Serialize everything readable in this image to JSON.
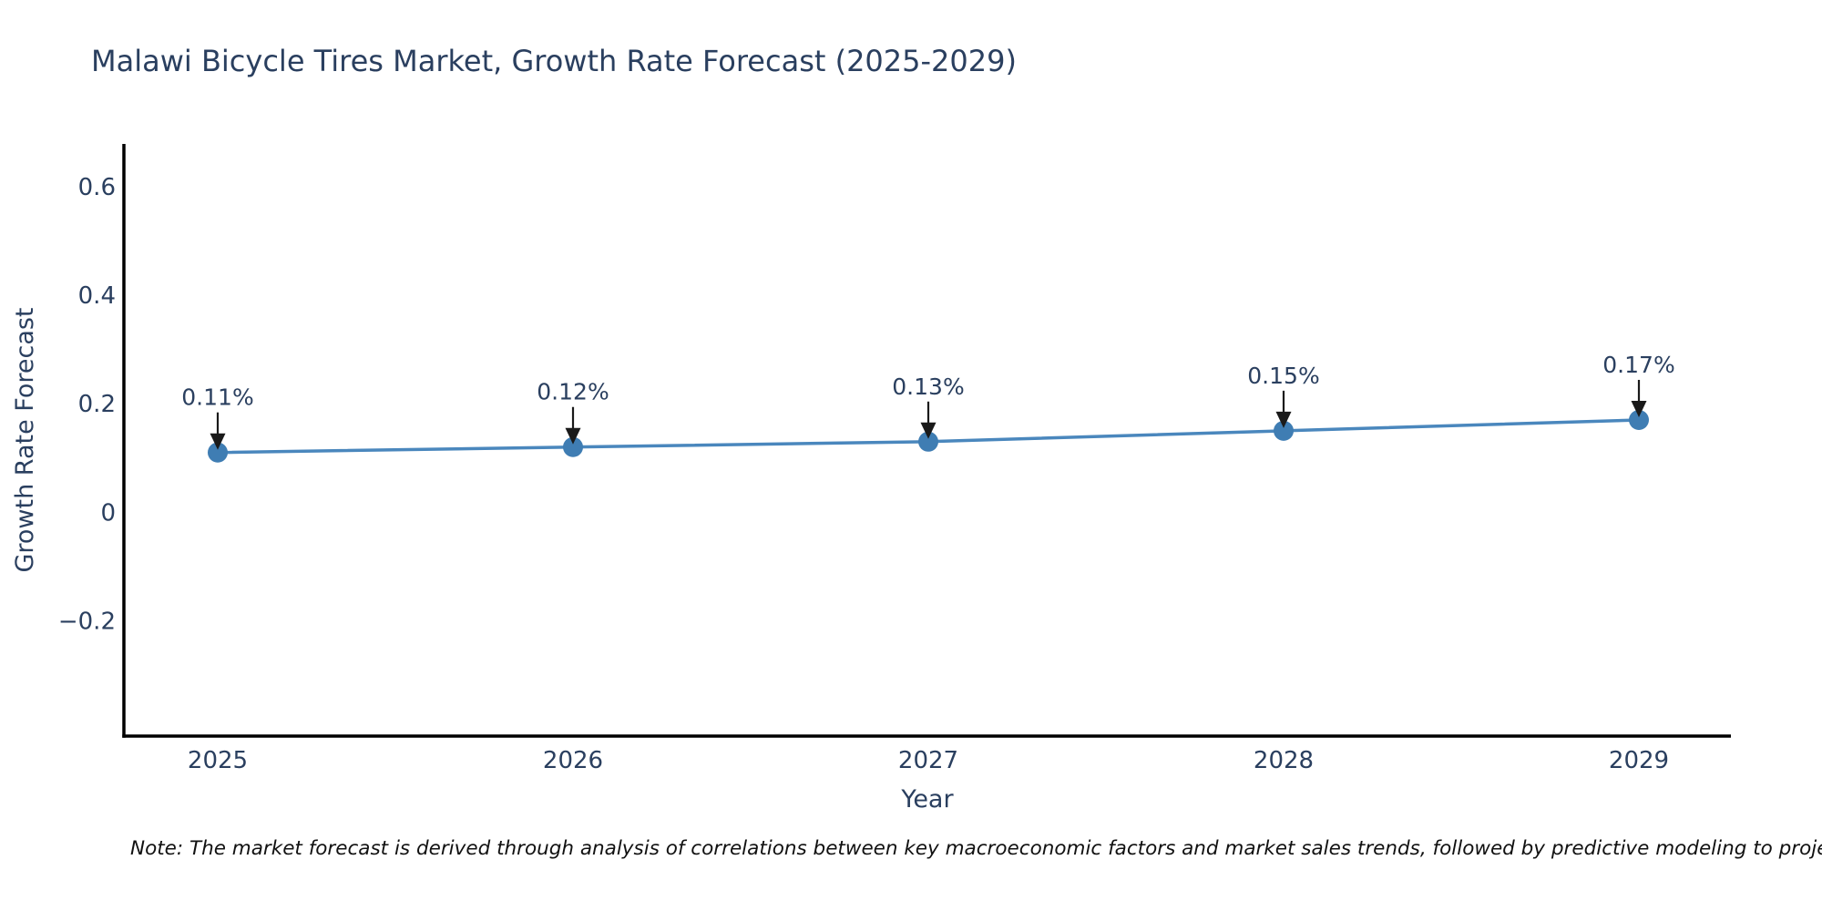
{
  "chart_data": {
    "type": "line",
    "title": "Malawi Bicycle Tires Market, Growth Rate Forecast (2025-2029)",
    "xlabel": "Year",
    "ylabel": "Growth Rate Forecast",
    "categories": [
      "2025",
      "2026",
      "2027",
      "2028",
      "2029"
    ],
    "values": [
      0.11,
      0.12,
      0.13,
      0.15,
      0.17
    ],
    "point_labels": [
      "0.11%",
      "0.12%",
      "0.13%",
      "0.15%",
      "0.17%"
    ],
    "yticks": [
      0.6,
      0.4,
      0.2,
      0,
      -0.2
    ],
    "ytick_labels": [
      "0.6",
      "0.4",
      "0.2",
      "0",
      "−0.2"
    ],
    "ylim": [
      -0.413,
      0.679
    ],
    "grid": false,
    "legend": "none",
    "line_color": "#4a87bd",
    "marker_color": "#3f7db3",
    "axis_color": "#000000",
    "text_color": "#2a3f5f",
    "arrow_color": "#1a1a1a"
  },
  "footer": {
    "note": "Note: The market forecast is derived through analysis of correlations between key macroeconomic factors and market sales trends, followed by predictive modeling to project future sa"
  }
}
